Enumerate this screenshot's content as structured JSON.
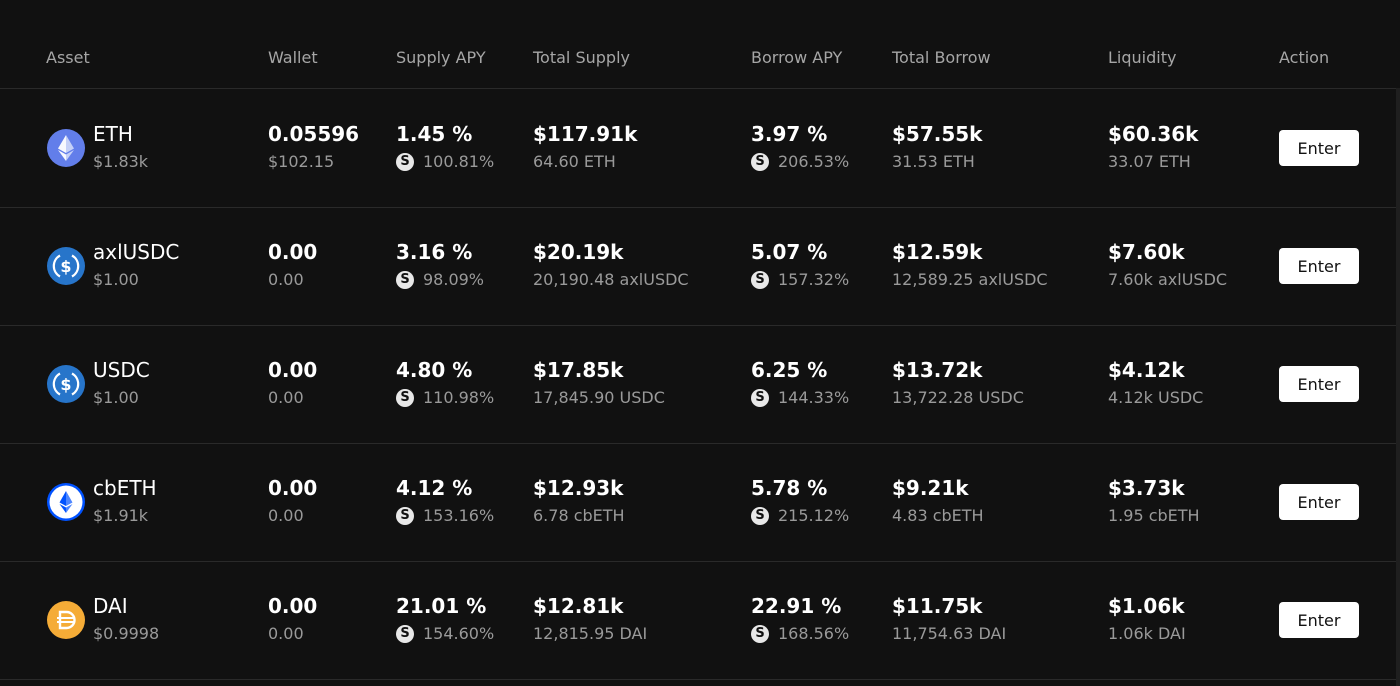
{
  "columns": {
    "asset": "Asset",
    "wallet": "Wallet",
    "supply_apy": "Supply APY",
    "total_supply": "Total Supply",
    "borrow_apy": "Borrow APY",
    "total_borrow": "Total Borrow",
    "liquidity": "Liquidity",
    "action": "Action"
  },
  "badge_glyph": "S",
  "rows": [
    {
      "icon": "eth-icon",
      "asset": "ETH",
      "price": "$1.83k",
      "wallet": "0.05596",
      "wallet_usd": "$102.15",
      "supply_apy": "1.45 %",
      "supply_reward": "100.81%",
      "total_supply": "$117.91k",
      "total_supply_native": "64.60 ETH",
      "borrow_apy": "3.97 %",
      "borrow_reward": "206.53%",
      "total_borrow": "$57.55k",
      "total_borrow_native": "31.53 ETH",
      "liquidity": "$60.36k",
      "liquidity_native": "33.07 ETH",
      "action": "Enter"
    },
    {
      "icon": "usdc-icon",
      "asset": "axlUSDC",
      "price": "$1.00",
      "wallet": "0.00",
      "wallet_usd": "0.00",
      "supply_apy": "3.16 %",
      "supply_reward": "98.09%",
      "total_supply": "$20.19k",
      "total_supply_native": "20,190.48 axlUSDC",
      "borrow_apy": "5.07 %",
      "borrow_reward": "157.32%",
      "total_borrow": "$12.59k",
      "total_borrow_native": "12,589.25 axlUSDC",
      "liquidity": "$7.60k",
      "liquidity_native": "7.60k axlUSDC",
      "action": "Enter"
    },
    {
      "icon": "usdc-icon",
      "asset": "USDC",
      "price": "$1.00",
      "wallet": "0.00",
      "wallet_usd": "0.00",
      "supply_apy": "4.80 %",
      "supply_reward": "110.98%",
      "total_supply": "$17.85k",
      "total_supply_native": "17,845.90 USDC",
      "borrow_apy": "6.25 %",
      "borrow_reward": "144.33%",
      "total_borrow": "$13.72k",
      "total_borrow_native": "13,722.28 USDC",
      "liquidity": "$4.12k",
      "liquidity_native": "4.12k USDC",
      "action": "Enter"
    },
    {
      "icon": "cbeth-icon",
      "asset": "cbETH",
      "price": "$1.91k",
      "wallet": "0.00",
      "wallet_usd": "0.00",
      "supply_apy": "4.12 %",
      "supply_reward": "153.16%",
      "total_supply": "$12.93k",
      "total_supply_native": "6.78 cbETH",
      "borrow_apy": "5.78 %",
      "borrow_reward": "215.12%",
      "total_borrow": "$9.21k",
      "total_borrow_native": "4.83 cbETH",
      "liquidity": "$3.73k",
      "liquidity_native": "1.95 cbETH",
      "action": "Enter"
    },
    {
      "icon": "dai-icon",
      "asset": "DAI",
      "price": "$0.9998",
      "wallet": "0.00",
      "wallet_usd": "0.00",
      "supply_apy": "21.01 %",
      "supply_reward": "154.60%",
      "total_supply": "$12.81k",
      "total_supply_native": "12,815.95 DAI",
      "borrow_apy": "22.91 %",
      "borrow_reward": "168.56%",
      "total_borrow": "$11.75k",
      "total_borrow_native": "11,754.63 DAI",
      "liquidity": "$1.06k",
      "liquidity_native": "1.06k DAI",
      "action": "Enter"
    }
  ],
  "colors": {
    "background": "#111111",
    "divider": "#2a2a2a",
    "header_text": "#a6a6a6",
    "secondary_text": "#9a9a9a",
    "eth": "#627eea",
    "usdc": "#2775ca",
    "cbeth": "#0052ff",
    "dai": "#f5ac37"
  }
}
